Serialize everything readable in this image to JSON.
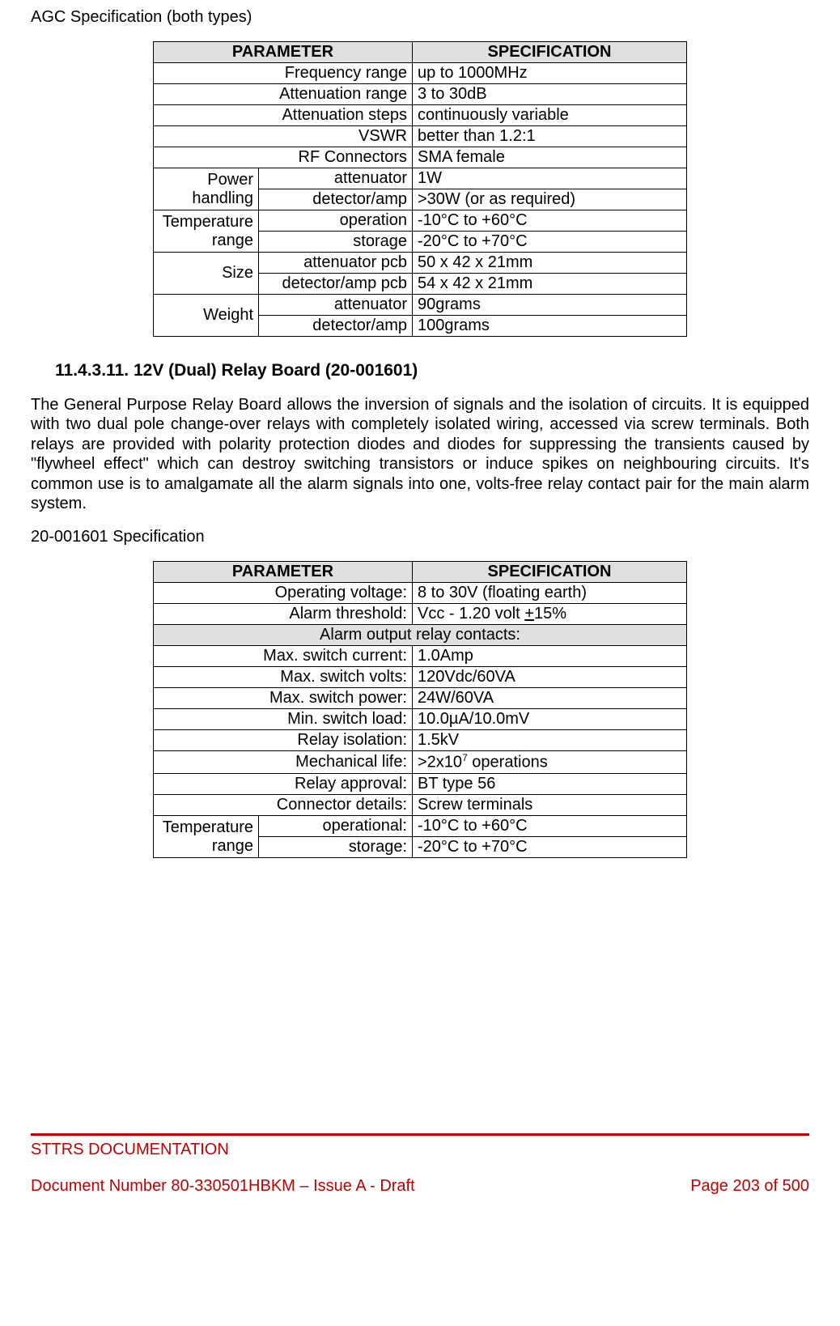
{
  "page": {
    "top_title": "AGC Specification (both types)",
    "section_number": "11.4.3.11.",
    "section_title": "12V (Dual) Relay Board (20-001601)",
    "body_paragraph": "The General Purpose Relay Board allows the inversion of signals and the isolation of circuits. It is equipped with two dual pole change-over relays with completely isolated wiring, accessed via screw terminals. Both relays are provided with polarity protection diodes and diodes for suppressing the transients caused by \"flywheel effect\" which can destroy switching transistors or induce spikes on neighbouring circuits. It's common use is to amalgamate all the alarm signals into one, volts-free relay contact pair for the main alarm system.",
    "spec2_title": "20-001601 Specification"
  },
  "headers": {
    "parameter": "PARAMETER",
    "specification": "SPECIFICATION"
  },
  "table1": {
    "rows": [
      {
        "param": "Frequency range",
        "spec": "up to 1000MHz"
      },
      {
        "param": "Attenuation range",
        "spec": "3 to 30dB"
      },
      {
        "param": "Attenuation steps",
        "spec": "continuously variable"
      },
      {
        "param": "VSWR",
        "spec": "better than 1.2:1"
      },
      {
        "param": "RF Connectors",
        "spec": "SMA female"
      }
    ],
    "groups": [
      {
        "group": "Power handling",
        "subs": [
          {
            "sub": "attenuator",
            "spec": "1W"
          },
          {
            "sub": "detector/amp",
            "spec": ">30W (or as required)"
          }
        ]
      },
      {
        "group": "Temperature range",
        "subs": [
          {
            "sub": "operation",
            "spec": "-10°C to +60°C"
          },
          {
            "sub": "storage",
            "spec": "-20°C to +70°C"
          }
        ]
      },
      {
        "group": "Size",
        "subs": [
          {
            "sub": "attenuator pcb",
            "spec": "50 x 42 x 21mm"
          },
          {
            "sub": "detector/amp pcb",
            "spec": "54 x 42 x 21mm"
          }
        ]
      },
      {
        "group": "Weight",
        "subs": [
          {
            "sub": "attenuator",
            "spec": "90grams"
          },
          {
            "sub": "detector/amp",
            "spec": "100grams"
          }
        ]
      }
    ]
  },
  "table2": {
    "rows_top": [
      {
        "param": "Operating voltage:",
        "spec": "8 to 30V (floating earth)"
      },
      {
        "param": "Alarm threshold:",
        "spec_pre": "Vcc - 1.20 volt ",
        "spec_under": "+",
        "spec_post": "15%"
      }
    ],
    "subheader": "Alarm output relay contacts:",
    "rows_mid": [
      {
        "param": "Max. switch current:",
        "spec": "1.0Amp"
      },
      {
        "param": "Max. switch volts:",
        "spec": "120Vdc/60VA"
      },
      {
        "param": "Max. switch power:",
        "spec": "24W/60VA"
      },
      {
        "param": "Min. switch load:",
        "spec": "10.0µA/10.0mV"
      },
      {
        "param": "Relay isolation:",
        "spec": "1.5kV"
      },
      {
        "param": "Mechanical life:",
        "spec_pre": ">2x10",
        "spec_sup": "7",
        "spec_post": " operations"
      },
      {
        "param": "Relay approval:",
        "spec": "BT type 56"
      },
      {
        "param": "Connector details:",
        "spec": "Screw terminals"
      }
    ],
    "group": {
      "label": "Temperature range",
      "subs": [
        {
          "sub": "operational:",
          "spec": "-10°C to +60°C"
        },
        {
          "sub": "storage:",
          "spec": "-20°C to +70°C"
        }
      ]
    }
  },
  "footer": {
    "line1": "STTRS DOCUMENTATION",
    "doc": "Document Number 80-330501HBKM – Issue A - Draft",
    "page": "Page 203 of 500",
    "rule_color": "#c00000",
    "text_color": "#c00000"
  }
}
